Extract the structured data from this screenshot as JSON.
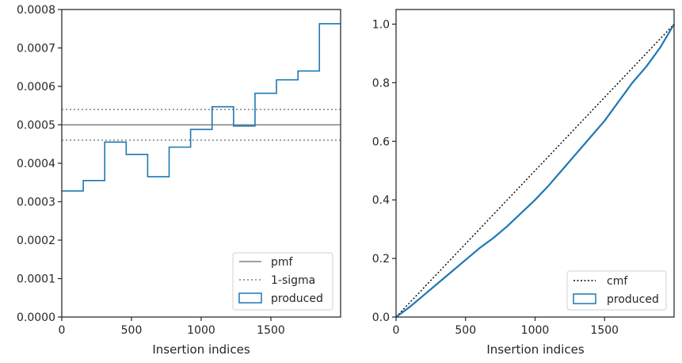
{
  "chart_data": [
    {
      "type": "histogram",
      "xlabel": "Insertion indices",
      "ylabel": "",
      "xlim": [
        0,
        2000
      ],
      "ylim": [
        0,
        0.0008
      ],
      "xticks": [
        0,
        500,
        1000,
        1500
      ],
      "xtick_labels": [
        "0",
        "500",
        "1000",
        "1500"
      ],
      "yticks": [
        0,
        0.0001,
        0.0002,
        0.0003,
        0.0004,
        0.0005,
        0.0006,
        0.0007,
        0.0008
      ],
      "ytick_labels": [
        "0.0000",
        "0.0001",
        "0.0002",
        "0.0003",
        "0.0004",
        "0.0005",
        "0.0006",
        "0.0007",
        "0.0008"
      ],
      "bin_edges": [
        0,
        154,
        308,
        462,
        616,
        770,
        924,
        1078,
        1232,
        1386,
        1540,
        1694,
        1848,
        2000
      ],
      "produced": [
        0.000328,
        0.000355,
        0.000455,
        0.000423,
        0.000365,
        0.000442,
        0.000488,
        0.000547,
        0.000497,
        0.000582,
        0.000617,
        0.00064,
        0.000763
      ],
      "pmf": 0.0005,
      "sigma_bounds": [
        0.00046,
        0.00054
      ],
      "legend": {
        "position": "lower-right",
        "entries": [
          {
            "label": "pmf",
            "style": "solid",
            "color": "#808080"
          },
          {
            "label": "1-sigma",
            "style": "dotted",
            "color": "#808080"
          },
          {
            "label": "produced",
            "style": "box",
            "color": "#1f77b4"
          }
        ]
      }
    },
    {
      "type": "line",
      "xlabel": "Insertion indices",
      "ylabel": "",
      "xlim": [
        0,
        2000
      ],
      "ylim": [
        0,
        1.05
      ],
      "xticks": [
        0,
        500,
        1000,
        1500
      ],
      "xtick_labels": [
        "0",
        "500",
        "1000",
        "1500"
      ],
      "yticks": [
        0,
        0.2,
        0.4,
        0.6,
        0.8,
        1.0
      ],
      "ytick_labels": [
        "0.0",
        "0.2",
        "0.4",
        "0.6",
        "0.8",
        "1.0"
      ],
      "cmf": {
        "x": [
          0,
          2000
        ],
        "y": [
          0,
          1.0
        ]
      },
      "produced": {
        "x": [
          0,
          100,
          200,
          300,
          400,
          500,
          600,
          700,
          800,
          900,
          1000,
          1100,
          1200,
          1300,
          1400,
          1500,
          1600,
          1700,
          1800,
          1900,
          2000
        ],
        "y": [
          0,
          0.035,
          0.075,
          0.115,
          0.155,
          0.195,
          0.235,
          0.27,
          0.31,
          0.355,
          0.4,
          0.45,
          0.505,
          0.56,
          0.615,
          0.67,
          0.735,
          0.8,
          0.855,
          0.92,
          1.0
        ]
      },
      "legend": {
        "position": "lower-right",
        "entries": [
          {
            "label": "cmf",
            "style": "dotted",
            "color": "#000000"
          },
          {
            "label": "produced",
            "style": "box",
            "color": "#1f77b4"
          }
        ]
      }
    }
  ],
  "colors": {
    "produced": "#1f77b4",
    "reference": "#808080",
    "cmf": "#000000",
    "axis": "#262626"
  }
}
